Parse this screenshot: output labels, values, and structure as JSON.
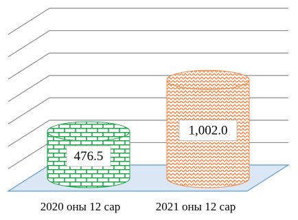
{
  "chart_data": {
    "type": "bar",
    "shape": "3d-cylinder",
    "title": "",
    "xlabel": "",
    "ylabel": "",
    "categories": [
      "2020 оны 12 сар",
      "2021 оны 12 сар"
    ],
    "values": [
      476.5,
      1002.0
    ],
    "data_labels": [
      "476.5",
      "1,002.0"
    ],
    "ylim": [
      0,
      1600
    ],
    "grid": true,
    "legend": "none",
    "colors": {
      "grid": "#8c8c8c",
      "floor": "#dbe7f5",
      "floor_edge": "#5b9bd5",
      "series": [
        "#1fa64a",
        "#ef8a4a"
      ],
      "series_bg": [
        "#ffffff",
        "#ffffff"
      ]
    },
    "patterns": [
      "brick",
      "zigzag"
    ]
  }
}
